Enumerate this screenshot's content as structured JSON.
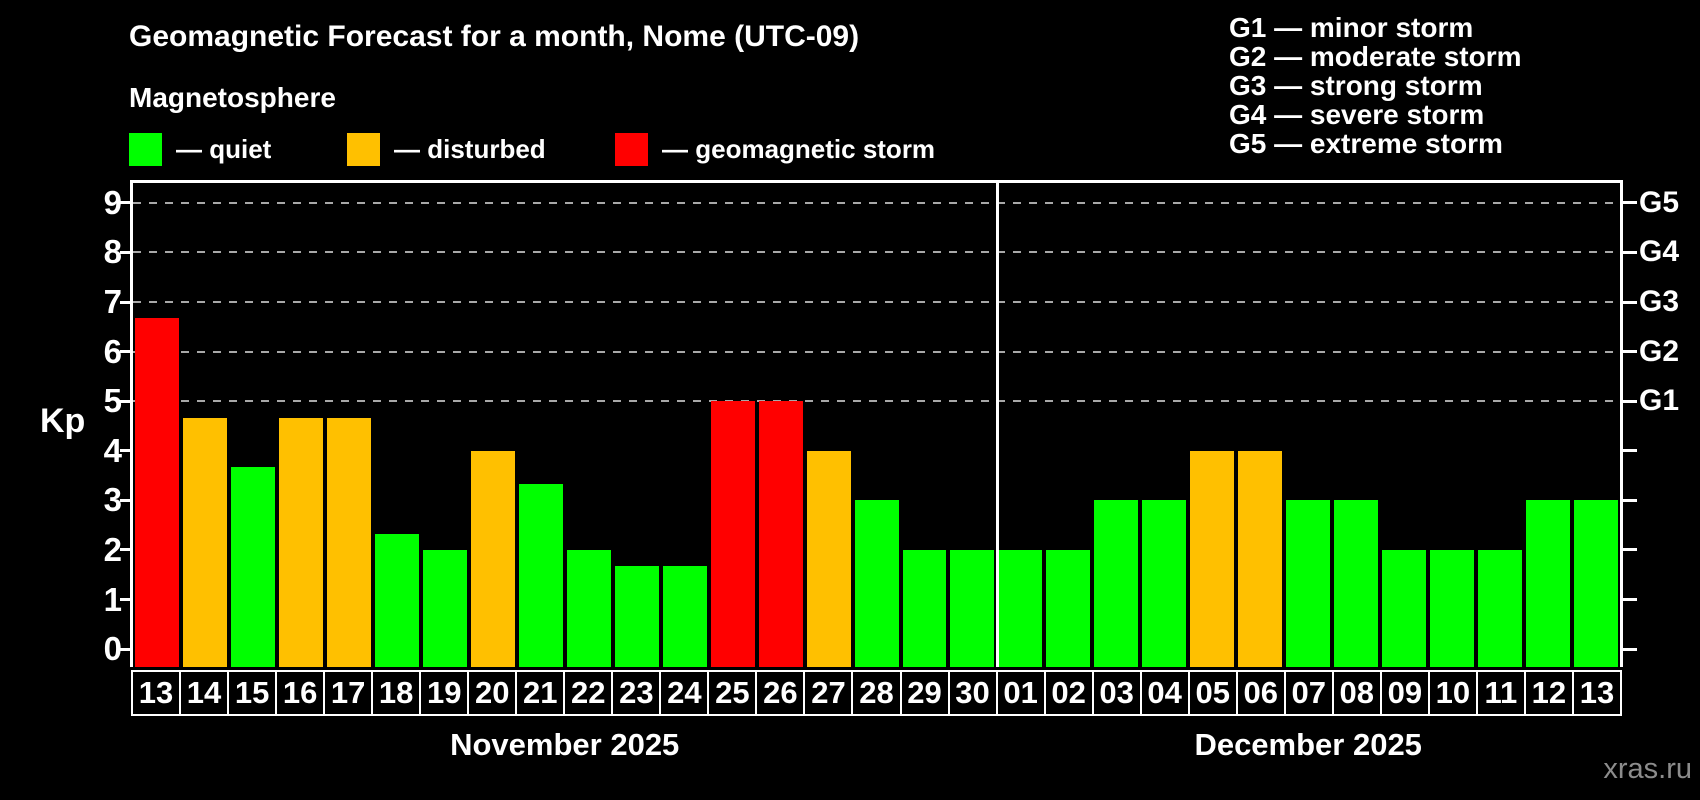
{
  "watermark": "xras.ru",
  "colors": {
    "quiet": "#00ff00",
    "disturbed": "#ffc000",
    "storm": "#ff0000",
    "axis": "#ffffff",
    "grid": "#a8a8a8",
    "background": "#000000",
    "watermark": "#8c8c8c"
  },
  "chart_data": {
    "type": "bar",
    "title": "Geomagnetic Forecast for a month, Nome (UTC-09)",
    "subtitle": "Magnetosphere",
    "ylabel": "Kp",
    "ylim": [
      -0.36,
      9.4
    ],
    "yticks": [
      0,
      1,
      2,
      3,
      4,
      5,
      6,
      7,
      8,
      9
    ],
    "gridlines_at": [
      5,
      6,
      7,
      8,
      9
    ],
    "grid": "horizontal dashed lines at storm levels G1-G5",
    "legend": [
      {
        "key": "quiet",
        "label": "— quiet"
      },
      {
        "key": "disturbed",
        "label": "— disturbed"
      },
      {
        "key": "storm",
        "label": "— geomagnetic storm"
      }
    ],
    "g_scale_legend": [
      "G1 — minor storm",
      "G2 — moderate storm",
      "G3 — strong storm",
      "G4 — severe storm",
      "G5 — extreme storm"
    ],
    "right_axis": [
      {
        "kp": 5,
        "label": "G1"
      },
      {
        "kp": 6,
        "label": "G2"
      },
      {
        "kp": 7,
        "label": "G3"
      },
      {
        "kp": 8,
        "label": "G4"
      },
      {
        "kp": 9,
        "label": "G5"
      }
    ],
    "months": [
      {
        "label": "November 2025",
        "days": [
          {
            "date": "13",
            "kp": 6.67,
            "status": "storm"
          },
          {
            "date": "14",
            "kp": 4.67,
            "status": "disturbed"
          },
          {
            "date": "15",
            "kp": 3.67,
            "status": "quiet"
          },
          {
            "date": "16",
            "kp": 4.67,
            "status": "disturbed"
          },
          {
            "date": "17",
            "kp": 4.67,
            "status": "disturbed"
          },
          {
            "date": "18",
            "kp": 2.33,
            "status": "quiet"
          },
          {
            "date": "19",
            "kp": 2.0,
            "status": "quiet"
          },
          {
            "date": "20",
            "kp": 4.0,
            "status": "disturbed"
          },
          {
            "date": "21",
            "kp": 3.33,
            "status": "quiet"
          },
          {
            "date": "22",
            "kp": 2.0,
            "status": "quiet"
          },
          {
            "date": "23",
            "kp": 1.67,
            "status": "quiet"
          },
          {
            "date": "24",
            "kp": 1.67,
            "status": "quiet"
          },
          {
            "date": "25",
            "kp": 5.0,
            "status": "storm"
          },
          {
            "date": "26",
            "kp": 5.0,
            "status": "storm"
          },
          {
            "date": "27",
            "kp": 4.0,
            "status": "disturbed"
          },
          {
            "date": "28",
            "kp": 3.0,
            "status": "quiet"
          },
          {
            "date": "29",
            "kp": 2.0,
            "status": "quiet"
          },
          {
            "date": "30",
            "kp": 2.0,
            "status": "quiet"
          }
        ]
      },
      {
        "label": "December 2025",
        "days": [
          {
            "date": "01",
            "kp": 2.0,
            "status": "quiet"
          },
          {
            "date": "02",
            "kp": 2.0,
            "status": "quiet"
          },
          {
            "date": "03",
            "kp": 3.0,
            "status": "quiet"
          },
          {
            "date": "04",
            "kp": 3.0,
            "status": "quiet"
          },
          {
            "date": "05",
            "kp": 4.0,
            "status": "disturbed"
          },
          {
            "date": "06",
            "kp": 4.0,
            "status": "disturbed"
          },
          {
            "date": "07",
            "kp": 3.0,
            "status": "quiet"
          },
          {
            "date": "08",
            "kp": 3.0,
            "status": "quiet"
          },
          {
            "date": "09",
            "kp": 2.0,
            "status": "quiet"
          },
          {
            "date": "10",
            "kp": 2.0,
            "status": "quiet"
          },
          {
            "date": "11",
            "kp": 2.0,
            "status": "quiet"
          },
          {
            "date": "12",
            "kp": 3.0,
            "status": "quiet"
          },
          {
            "date": "13",
            "kp": 3.0,
            "status": "quiet"
          }
        ]
      }
    ]
  }
}
